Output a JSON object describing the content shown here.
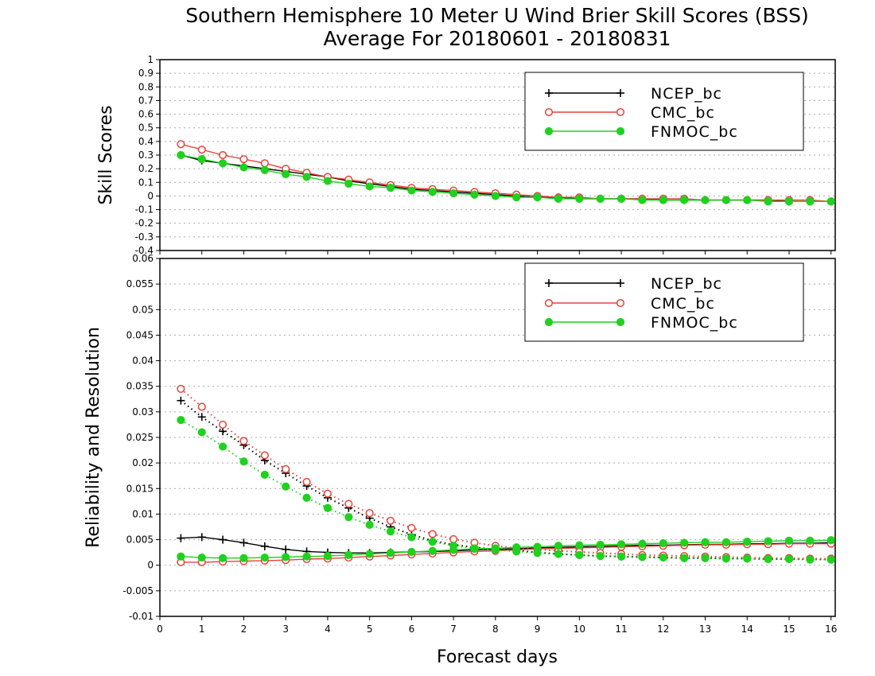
{
  "titles": {
    "line1": "Southern Hemisphere 10 Meter U Wind Brier Skill Scores (BSS)",
    "line2": "Average For 20180601 - 20180831"
  },
  "xlabel": "Forecast days",
  "colors": {
    "NCEP_bc": "#000000",
    "CMC_bc": "#e8413c",
    "FNMOC_bc": "#1ed21e"
  },
  "chart_data": [
    {
      "type": "line",
      "ylabel": "Skill Scores",
      "xlim": [
        0,
        16.1
      ],
      "ylim": [
        -0.4,
        1
      ],
      "x_ticks": [
        "0",
        "1",
        "2",
        "3",
        "4",
        "5",
        "6",
        "7",
        "8",
        "9",
        "10",
        "11",
        "12",
        "13",
        "14",
        "15",
        "16"
      ],
      "y_ticks": [
        "-0.4",
        "-0.3",
        "-0.2",
        "-0.1",
        "0",
        "0.1",
        "0.2",
        "0.3",
        "0.4",
        "0.5",
        "0.6",
        "0.7",
        "0.8",
        "0.9",
        "1"
      ],
      "grid": true,
      "legend_position": "top-right",
      "x": [
        0.5,
        1,
        1.5,
        2,
        2.5,
        3,
        3.5,
        4,
        4.5,
        5,
        5.5,
        6,
        6.5,
        7,
        7.5,
        8,
        8.5,
        9,
        9.5,
        10,
        10.5,
        11,
        11.5,
        12,
        12.5,
        13,
        13.5,
        14,
        14.5,
        15,
        15.5,
        16
      ],
      "series": [
        {
          "name": "NCEP_bc",
          "marker": "plus",
          "style": "solid",
          "values": [
            0.3,
            0.26,
            0.24,
            0.22,
            0.2,
            0.18,
            0.16,
            0.14,
            0.11,
            0.09,
            0.07,
            0.05,
            0.04,
            0.03,
            0.02,
            0.01,
            0.0,
            -0.01,
            -0.01,
            -0.02,
            -0.02,
            -0.02,
            -0.02,
            -0.03,
            -0.03,
            -0.03,
            -0.03,
            -0.03,
            -0.03,
            -0.04,
            -0.04,
            -0.04
          ]
        },
        {
          "name": "CMC_bc",
          "marker": "open-circle",
          "style": "solid",
          "values": [
            0.38,
            0.34,
            0.3,
            0.27,
            0.24,
            0.2,
            0.17,
            0.14,
            0.12,
            0.1,
            0.08,
            0.06,
            0.05,
            0.04,
            0.03,
            0.02,
            0.01,
            0.0,
            -0.01,
            -0.01,
            -0.02,
            -0.02,
            -0.02,
            -0.02,
            -0.02,
            -0.03,
            -0.03,
            -0.03,
            -0.03,
            -0.03,
            -0.03,
            -0.04
          ]
        },
        {
          "name": "FNMOC_bc",
          "marker": "filled-circle",
          "style": "solid",
          "values": [
            0.3,
            0.27,
            0.24,
            0.21,
            0.19,
            0.16,
            0.14,
            0.11,
            0.09,
            0.07,
            0.06,
            0.04,
            0.03,
            0.02,
            0.01,
            0.0,
            -0.01,
            -0.01,
            -0.02,
            -0.02,
            -0.02,
            -0.02,
            -0.03,
            -0.03,
            -0.03,
            -0.03,
            -0.03,
            -0.03,
            -0.04,
            -0.04,
            -0.04,
            -0.04
          ]
        }
      ]
    },
    {
      "type": "line",
      "ylabel": "Reliability and Resolution",
      "xlim": [
        0,
        16.1
      ],
      "ylim": [
        -0.01,
        0.06
      ],
      "x_ticks": [
        "0",
        "1",
        "2",
        "3",
        "4",
        "5",
        "6",
        "7",
        "8",
        "9",
        "10",
        "11",
        "12",
        "13",
        "14",
        "15",
        "16"
      ],
      "y_ticks": [
        "-0.01",
        "-0.005",
        "0",
        "0.005",
        "0.01",
        "0.015",
        "0.02",
        "0.025",
        "0.03",
        "0.035",
        "0.04",
        "0.045",
        "0.05",
        "0.055",
        "0.06"
      ],
      "grid": true,
      "legend_position": "top-right",
      "x": [
        0.5,
        1,
        1.5,
        2,
        2.5,
        3,
        3.5,
        4,
        4.5,
        5,
        5.5,
        6,
        6.5,
        7,
        7.5,
        8,
        8.5,
        9,
        9.5,
        10,
        10.5,
        11,
        11.5,
        12,
        12.5,
        13,
        13.5,
        14,
        14.5,
        15,
        15.5,
        16
      ],
      "series": [
        {
          "name": "NCEP_bc",
          "marker": "plus",
          "style": "solid",
          "kind": "reliability",
          "values": [
            0.0053,
            0.0055,
            0.005,
            0.0044,
            0.0037,
            0.0031,
            0.0027,
            0.0025,
            0.0024,
            0.0024,
            0.0025,
            0.0026,
            0.0027,
            0.0028,
            0.003,
            0.0031,
            0.0032,
            0.0034,
            0.0035,
            0.0036,
            0.0037,
            0.0038,
            0.0039,
            0.0039,
            0.004,
            0.0041,
            0.0041,
            0.0042,
            0.0042,
            0.0043,
            0.0043,
            0.0044
          ]
        },
        {
          "name": "NCEP_bc",
          "marker": "plus",
          "style": "dotted",
          "kind": "resolution",
          "values": [
            0.0322,
            0.029,
            0.0262,
            0.0235,
            0.0205,
            0.018,
            0.0155,
            0.0132,
            0.0112,
            0.0092,
            0.0075,
            0.006,
            0.0048,
            0.004,
            0.0035,
            0.0031,
            0.0029,
            0.0025,
            0.0022,
            0.002,
            0.0018,
            0.0017,
            0.0016,
            0.0015,
            0.0014,
            0.0014,
            0.0013,
            0.0013,
            0.0012,
            0.0012,
            0.0012,
            0.0011
          ]
        },
        {
          "name": "CMC_bc",
          "marker": "open-circle",
          "style": "solid",
          "kind": "reliability",
          "values": [
            0.0006,
            0.0006,
            0.0007,
            0.0008,
            0.0009,
            0.001,
            0.0012,
            0.0013,
            0.0015,
            0.0017,
            0.0019,
            0.0021,
            0.0023,
            0.0025,
            0.0027,
            0.0028,
            0.003,
            0.0032,
            0.0033,
            0.0034,
            0.0035,
            0.0036,
            0.0037,
            0.0038,
            0.0039,
            0.004,
            0.004,
            0.0041,
            0.0041,
            0.0042,
            0.0042,
            0.0042
          ]
        },
        {
          "name": "CMC_bc",
          "marker": "open-circle",
          "style": "dotted",
          "kind": "resolution",
          "values": [
            0.0345,
            0.031,
            0.0275,
            0.0243,
            0.0215,
            0.0188,
            0.0163,
            0.014,
            0.012,
            0.0102,
            0.0087,
            0.0073,
            0.0061,
            0.0051,
            0.0044,
            0.0038,
            0.0034,
            0.0031,
            0.0028,
            0.0026,
            0.0024,
            0.0022,
            0.002,
            0.0019,
            0.0018,
            0.0017,
            0.0016,
            0.0015,
            0.0014,
            0.0014,
            0.0013,
            0.0013
          ]
        },
        {
          "name": "FNMOC_bc",
          "marker": "filled-circle",
          "style": "solid",
          "kind": "reliability",
          "values": [
            0.0017,
            0.0015,
            0.0014,
            0.0014,
            0.0015,
            0.0016,
            0.0017,
            0.0018,
            0.002,
            0.0022,
            0.0024,
            0.0026,
            0.0028,
            0.003,
            0.0032,
            0.0033,
            0.0035,
            0.0036,
            0.0038,
            0.0039,
            0.004,
            0.0041,
            0.0042,
            0.0043,
            0.0044,
            0.0045,
            0.0045,
            0.0046,
            0.0047,
            0.0048,
            0.0048,
            0.0049
          ]
        },
        {
          "name": "FNMOC_bc",
          "marker": "filled-circle",
          "style": "dotted",
          "kind": "resolution",
          "values": [
            0.0284,
            0.026,
            0.0232,
            0.0203,
            0.0177,
            0.0154,
            0.0132,
            0.0112,
            0.0094,
            0.0079,
            0.0066,
            0.0055,
            0.0046,
            0.0038,
            0.0033,
            0.003,
            0.0027,
            0.0024,
            0.0022,
            0.002,
            0.0018,
            0.0017,
            0.0016,
            0.0015,
            0.0014,
            0.0014,
            0.0013,
            0.0013,
            0.0012,
            0.0012,
            0.0011,
            0.0011
          ]
        }
      ]
    }
  ]
}
